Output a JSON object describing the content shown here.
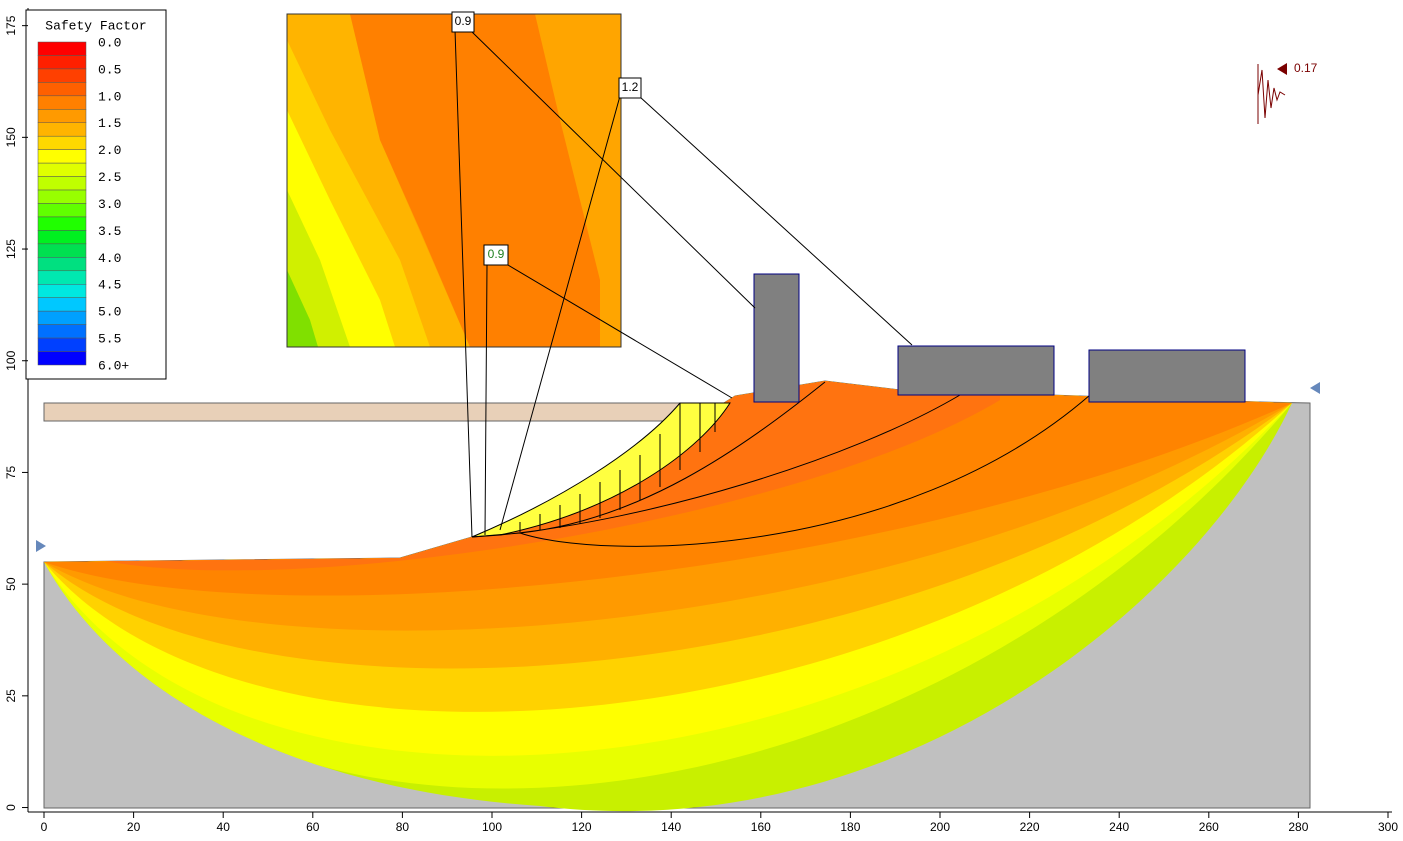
{
  "chart_data": {
    "type": "contour",
    "xlim": [
      0,
      300
    ],
    "ylim": [
      -1,
      178.5
    ],
    "xticks": [
      0,
      20,
      40,
      60,
      80,
      100,
      120,
      140,
      160,
      180,
      200,
      220,
      240,
      260,
      280,
      300
    ],
    "yticks": [
      0,
      25,
      50,
      75,
      100,
      125,
      150,
      175
    ],
    "legend": {
      "title": "Safety Factor",
      "levels": [
        {
          "value": 0,
          "label": "0.0"
        },
        {
          "value": 0.5,
          "label": "0.5"
        },
        {
          "value": 1,
          "label": "1.0"
        },
        {
          "value": 1.5,
          "label": "1.5"
        },
        {
          "value": 2,
          "label": "2.0"
        },
        {
          "value": 2.5,
          "label": "2.5"
        },
        {
          "value": 3,
          "label": "3.0"
        },
        {
          "value": 3.5,
          "label": "3.5"
        },
        {
          "value": 4,
          "label": "4.0"
        },
        {
          "value": 4.5,
          "label": "4.5"
        },
        {
          "value": 5,
          "label": "5.0"
        },
        {
          "value": 5.5,
          "label": "5.5"
        },
        {
          "value": 6,
          "label": "6.0+"
        }
      ],
      "colors": [
        "#ff0000",
        "#ff2000",
        "#ff4000",
        "#ff6000",
        "#ff8000",
        "#ff9a00",
        "#ffb400",
        "#ffd800",
        "#ffff00",
        "#e0ff00",
        "#c0ff00",
        "#98ff00",
        "#60ff00",
        "#20ff00",
        "#00f020",
        "#00e050",
        "#00e080",
        "#00e8b0",
        "#00e8e0",
        "#00c8ff",
        "#00a0ff",
        "#0070ff",
        "#0040ff",
        "#0000ff"
      ]
    },
    "annotations": [
      {
        "text": "0.9"
      },
      {
        "text": "1.2"
      },
      {
        "text": "0.9"
      }
    ],
    "seismic_label": "0.17"
  }
}
